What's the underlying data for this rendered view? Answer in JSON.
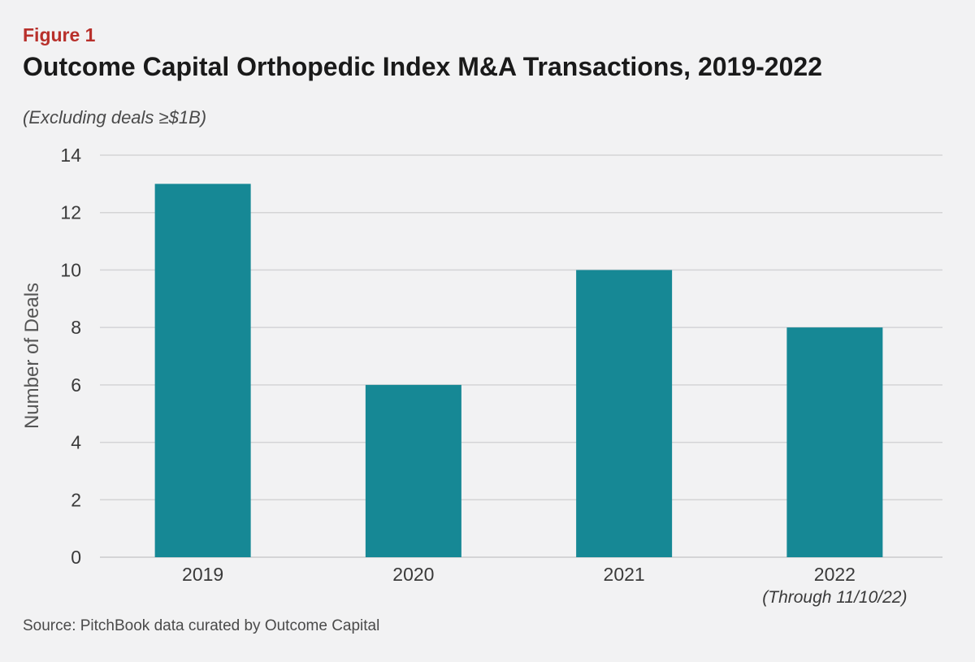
{
  "figure_label": "Figure 1",
  "title": "Outcome Capital Orthopedic Index M&A Transactions, 2019-2022",
  "subtitle": "(Excluding deals ≥$1B)",
  "source": "Source: PitchBook data curated by Outcome Capital",
  "colors": {
    "bar": "#168895",
    "grid": "#d4d4d6",
    "axis_text": "#3a3a3a",
    "figure_label": "#b8302b"
  },
  "chart_data": {
    "type": "bar",
    "categories": [
      "2019",
      "2020",
      "2021",
      "2022"
    ],
    "category_notes": [
      "",
      "",
      "",
      "(Through 11/10/22)"
    ],
    "values": [
      13,
      6,
      10,
      8
    ],
    "xlabel": "",
    "ylabel": "Number of Deals",
    "ylim": [
      0,
      14
    ],
    "yticks": [
      0,
      2,
      4,
      6,
      8,
      10,
      12,
      14
    ],
    "grid": true,
    "legend": "none"
  }
}
